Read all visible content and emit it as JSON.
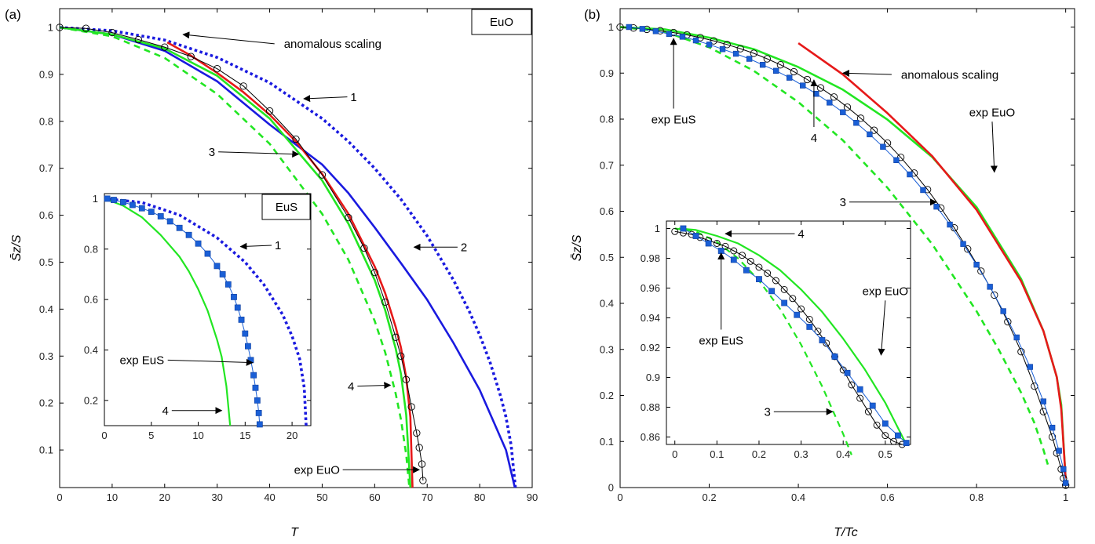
{
  "chart_data": [
    {
      "panel_label": "(a)",
      "type": "line",
      "xlabel": "T",
      "ylabel": "S̄z/S",
      "xlim": [
        0,
        90
      ],
      "ylim": [
        0.02,
        1.04
      ],
      "xticks": [
        "0",
        "10",
        "20",
        "30",
        "40",
        "50",
        "60",
        "70",
        "80",
        "90"
      ],
      "yticks": [
        "0.1",
        "0.2",
        "0.3",
        "0.4",
        "0.5",
        "0.6",
        "0.7",
        "0.8",
        "0.9",
        "1"
      ],
      "box_label": "EuO",
      "series": [
        {
          "id": "a-curve-1",
          "color": "#1a1adf",
          "style": "dotted",
          "x": [
            0,
            10,
            20,
            30,
            40,
            50,
            55,
            60,
            65,
            70,
            75,
            78,
            80,
            82,
            84,
            85,
            86,
            86.8
          ],
          "y": [
            1,
            0.993,
            0.973,
            0.936,
            0.882,
            0.806,
            0.757,
            0.7,
            0.634,
            0.556,
            0.462,
            0.396,
            0.345,
            0.286,
            0.214,
            0.17,
            0.11,
            0.02
          ]
        },
        {
          "id": "a-curve-2",
          "color": "#1a1adf",
          "style": "solid",
          "x": [
            0,
            10,
            20,
            30,
            40,
            50,
            55,
            60,
            65,
            70,
            75,
            80,
            85,
            86.7
          ],
          "y": [
            1,
            0.985,
            0.95,
            0.885,
            0.793,
            0.708,
            0.647,
            0.574,
            0.498,
            0.42,
            0.328,
            0.228,
            0.1,
            0.02
          ]
        },
        {
          "id": "a-curve-3",
          "color": "#22e622",
          "style": "dashed",
          "x": [
            0,
            10,
            20,
            30,
            40,
            50,
            55,
            60,
            62,
            64,
            65,
            66,
            66.6
          ],
          "y": [
            1,
            0.981,
            0.935,
            0.858,
            0.752,
            0.603,
            0.505,
            0.375,
            0.308,
            0.22,
            0.165,
            0.09,
            0.02
          ]
        },
        {
          "id": "a-curve-4",
          "color": "#22e622",
          "style": "solid",
          "x": [
            0,
            10,
            20,
            30,
            40,
            50,
            55,
            60,
            62,
            64,
            65,
            66,
            66.8
          ],
          "y": [
            1,
            0.985,
            0.955,
            0.897,
            0.806,
            0.674,
            0.582,
            0.462,
            0.398,
            0.316,
            0.262,
            0.175,
            0.02
          ]
        },
        {
          "id": "a-anomalous",
          "color": "#e61919",
          "style": "solid",
          "x": [
            20.5,
            25,
            30,
            35,
            40,
            45,
            50,
            55,
            60,
            62,
            64,
            65,
            66,
            66.8,
            67.2
          ],
          "y": [
            0.968,
            0.94,
            0.903,
            0.862,
            0.814,
            0.757,
            0.688,
            0.603,
            0.491,
            0.434,
            0.362,
            0.318,
            0.254,
            0.17,
            0.02
          ]
        },
        {
          "id": "a-exp-euo",
          "color": "#000000",
          "style": "markers-open",
          "x": [
            0,
            5,
            10,
            15,
            20,
            25,
            30,
            35,
            40,
            45,
            50,
            55,
            58,
            60,
            62,
            64,
            65,
            66,
            67,
            68,
            68.5,
            69,
            69.2
          ],
          "y": [
            1,
            0.998,
            0.989,
            0.974,
            0.958,
            0.938,
            0.912,
            0.875,
            0.822,
            0.762,
            0.686,
            0.595,
            0.53,
            0.478,
            0.415,
            0.34,
            0.3,
            0.25,
            0.192,
            0.136,
            0.105,
            0.07,
            0.035
          ]
        }
      ],
      "annotations": [
        {
          "text": "anomalous scaling",
          "x": 52,
          "y": 0.965,
          "tx": 23.5,
          "ty": 0.985
        },
        {
          "text": "1",
          "x": 56,
          "y": 0.852,
          "tx": 46.5,
          "ty": 0.848
        },
        {
          "text": "2",
          "x": 77,
          "y": 0.532,
          "tx": 67.5,
          "ty": 0.532
        },
        {
          "text": "3",
          "x": 29,
          "y": 0.735,
          "tx": 45.5,
          "ty": 0.73
        },
        {
          "text": "4",
          "x": 55.5,
          "y": 0.236,
          "tx": 63,
          "ty": 0.238
        },
        {
          "text": "exp EuO",
          "x": 49,
          "y": 0.058,
          "tx": 68.5,
          "ty": 0.058
        }
      ],
      "inset": {
        "type": "line",
        "xlim": [
          0,
          22
        ],
        "ylim": [
          0.1,
          1.02
        ],
        "xticks": [
          "0",
          "5",
          "10",
          "15",
          "20"
        ],
        "yticks": [
          "0.2",
          "0.4",
          "0.6",
          "0.8",
          "1"
        ],
        "box_label": "EuS",
        "series": [
          {
            "id": "i1-curve-1",
            "color": "#1a1adf",
            "style": "dotted",
            "x": [
              0,
              4,
              8,
              12,
              15,
              17,
              19,
              20,
              20.8,
              21.3,
              21.5
            ],
            "y": [
              1,
              0.985,
              0.935,
              0.845,
              0.748,
              0.659,
              0.54,
              0.455,
              0.365,
              0.25,
              0.1
            ]
          },
          {
            "id": "i1-curve-4",
            "color": "#22e622",
            "style": "solid",
            "x": [
              0,
              2,
              4,
              6,
              8,
              9,
              10,
              11,
              12,
              12.5,
              13,
              13.4
            ],
            "y": [
              1,
              0.972,
              0.926,
              0.856,
              0.77,
              0.712,
              0.641,
              0.556,
              0.441,
              0.373,
              0.257,
              0.1
            ]
          },
          {
            "id": "i1-exp-eus",
            "color": "#1a5fd6",
            "style": "markers-square",
            "x": [
              0.3,
              1,
              2,
              3,
              4,
              5,
              6,
              7,
              8,
              9,
              10,
              11,
              12,
              12.6,
              13.2,
              13.8,
              14.2,
              14.6,
              15,
              15.3,
              15.6,
              15.9,
              16.1,
              16.3,
              16.45,
              16.55
            ],
            "y": [
              1,
              0.995,
              0.986,
              0.975,
              0.962,
              0.948,
              0.93,
              0.91,
              0.884,
              0.856,
              0.822,
              0.782,
              0.733,
              0.7,
              0.66,
              0.61,
              0.568,
              0.52,
              0.465,
              0.415,
              0.36,
              0.3,
              0.25,
              0.2,
              0.15,
              0.105
            ]
          }
        ],
        "annotations": [
          {
            "text": "1",
            "x": 18.5,
            "y": 0.815,
            "tx": 14.5,
            "ty": 0.81
          },
          {
            "text": "exp EuS",
            "x": 4,
            "y": 0.36,
            "tx": 15.8,
            "ty": 0.35
          },
          {
            "text": "4",
            "x": 6.5,
            "y": 0.16,
            "tx": 12.5,
            "ty": 0.16
          }
        ]
      }
    },
    {
      "panel_label": "(b)",
      "type": "line",
      "xlabel": "T/Tc",
      "ylabel": "S̄z/S",
      "xlim": [
        0,
        1.02
      ],
      "ylim": [
        0,
        1.04
      ],
      "xticks": [
        "0",
        "0.2",
        "0.4",
        "0.6",
        "0.8",
        "1"
      ],
      "yticks": [
        "0",
        "0.1",
        "0.2",
        "0.3",
        "0.4",
        "0.5",
        "0.6",
        "0.7",
        "0.8",
        "0.9",
        "1"
      ],
      "series": [
        {
          "id": "b-curve-3",
          "color": "#22e622",
          "style": "dashed",
          "x": [
            0,
            0.1,
            0.2,
            0.3,
            0.4,
            0.5,
            0.6,
            0.7,
            0.8,
            0.85,
            0.9,
            0.93,
            0.95,
            0.96
          ],
          "y": [
            1,
            0.99,
            0.956,
            0.905,
            0.837,
            0.754,
            0.651,
            0.529,
            0.383,
            0.299,
            0.206,
            0.14,
            0.082,
            0.05
          ]
        },
        {
          "id": "b-curve-4",
          "color": "#22e622",
          "style": "solid",
          "x": [
            0,
            0.1,
            0.2,
            0.3,
            0.4,
            0.5,
            0.6,
            0.7,
            0.8,
            0.9,
            0.95,
            0.98,
            0.99,
            1
          ],
          "y": [
            1,
            0.995,
            0.977,
            0.952,
            0.913,
            0.864,
            0.799,
            0.718,
            0.609,
            0.453,
            0.34,
            0.24,
            0.18,
            0.02
          ]
        },
        {
          "id": "b-anomalous",
          "color": "#e61919",
          "style": "solid",
          "x": [
            0.4,
            0.5,
            0.6,
            0.7,
            0.8,
            0.9,
            0.95,
            0.98,
            0.99,
            1
          ],
          "y": [
            0.965,
            0.897,
            0.813,
            0.72,
            0.603,
            0.448,
            0.34,
            0.24,
            0.17,
            0.02
          ]
        },
        {
          "id": "b-exp-euo",
          "color": "#000000",
          "style": "markers-open",
          "x": [
            0,
            0.03,
            0.06,
            0.09,
            0.12,
            0.15,
            0.18,
            0.21,
            0.24,
            0.27,
            0.3,
            0.33,
            0.36,
            0.39,
            0.42,
            0.45,
            0.48,
            0.51,
            0.54,
            0.57,
            0.6,
            0.63,
            0.66,
            0.69,
            0.72,
            0.75,
            0.78,
            0.81,
            0.84,
            0.87,
            0.9,
            0.93,
            0.95,
            0.97,
            0.98,
            0.99,
            0.995,
            1
          ],
          "y": [
            1,
            0.998,
            0.995,
            0.992,
            0.988,
            0.983,
            0.977,
            0.97,
            0.962,
            0.953,
            0.943,
            0.931,
            0.918,
            0.903,
            0.886,
            0.868,
            0.848,
            0.826,
            0.802,
            0.776,
            0.748,
            0.717,
            0.683,
            0.647,
            0.607,
            0.564,
            0.518,
            0.47,
            0.418,
            0.36,
            0.295,
            0.22,
            0.165,
            0.11,
            0.075,
            0.04,
            0.02,
            0.005
          ]
        },
        {
          "id": "b-exp-eus",
          "color": "#1a5fd6",
          "style": "markers-square",
          "x": [
            0.02,
            0.05,
            0.08,
            0.11,
            0.14,
            0.17,
            0.2,
            0.23,
            0.26,
            0.29,
            0.32,
            0.35,
            0.38,
            0.41,
            0.44,
            0.47,
            0.5,
            0.53,
            0.56,
            0.59,
            0.62,
            0.65,
            0.68,
            0.71,
            0.74,
            0.77,
            0.8,
            0.83,
            0.86,
            0.89,
            0.92,
            0.95,
            0.97,
            0.985,
            0.995,
            1
          ],
          "y": [
            1,
            0.996,
            0.991,
            0.985,
            0.979,
            0.971,
            0.962,
            0.952,
            0.942,
            0.931,
            0.918,
            0.905,
            0.89,
            0.873,
            0.855,
            0.836,
            0.815,
            0.792,
            0.767,
            0.74,
            0.711,
            0.68,
            0.646,
            0.61,
            0.571,
            0.529,
            0.484,
            0.436,
            0.383,
            0.326,
            0.262,
            0.187,
            0.13,
            0.08,
            0.04,
            0.01
          ]
        }
      ],
      "annotations": [
        {
          "text": "anomalous scaling",
          "x": 0.74,
          "y": 0.897,
          "tx": 0.5,
          "ty": 0.9
        },
        {
          "text": "exp EuS",
          "x": 0.12,
          "y": 0.8,
          "tx": 0.12,
          "ty": 0.975
        },
        {
          "text": "4",
          "x": 0.435,
          "y": 0.76,
          "tx": 0.435,
          "ty": 0.885
        },
        {
          "text": "exp EuO",
          "x": 0.835,
          "y": 0.815,
          "tx": 0.84,
          "ty": 0.685
        },
        {
          "text": "3",
          "x": 0.5,
          "y": 0.62,
          "tx": 0.71,
          "ty": 0.62
        }
      ],
      "inset": {
        "type": "line",
        "xlim": [
          -0.02,
          0.56
        ],
        "ylim": [
          0.855,
          1.005
        ],
        "xticks": [
          "0",
          "0.1",
          "0.2",
          "0.3",
          "0.4",
          "0.5"
        ],
        "yticks": [
          "0.86",
          "0.88",
          "0.9",
          "0.92",
          "0.94",
          "0.96",
          "0.98",
          "1"
        ],
        "series": [
          {
            "id": "i2-curve-3",
            "color": "#22e622",
            "style": "dashed",
            "x": [
              0,
              0.05,
              0.1,
              0.15,
              0.2,
              0.25,
              0.3,
              0.35,
              0.4,
              0.42
            ],
            "y": [
              1,
              0.998,
              0.991,
              0.98,
              0.965,
              0.946,
              0.922,
              0.894,
              0.862,
              0.848
            ]
          },
          {
            "id": "i2-curve-4",
            "color": "#22e622",
            "style": "solid",
            "x": [
              0.01,
              0.05,
              0.1,
              0.15,
              0.2,
              0.25,
              0.3,
              0.35,
              0.4,
              0.45,
              0.5,
              0.55
            ],
            "y": [
              1,
              0.999,
              0.995,
              0.99,
              0.982,
              0.972,
              0.959,
              0.944,
              0.926,
              0.906,
              0.883,
              0.855
            ]
          },
          {
            "id": "i2-exp-euo",
            "color": "#000000",
            "style": "markers-open",
            "x": [
              0,
              0.02,
              0.04,
              0.06,
              0.08,
              0.1,
              0.12,
              0.14,
              0.16,
              0.18,
              0.2,
              0.22,
              0.24,
              0.26,
              0.28,
              0.3,
              0.32,
              0.34,
              0.36,
              0.38,
              0.4,
              0.42,
              0.44,
              0.46,
              0.48,
              0.5,
              0.52,
              0.54
            ],
            "y": [
              0.998,
              0.997,
              0.996,
              0.994,
              0.992,
              0.99,
              0.988,
              0.985,
              0.982,
              0.978,
              0.974,
              0.97,
              0.965,
              0.959,
              0.953,
              0.946,
              0.939,
              0.931,
              0.923,
              0.914,
              0.905,
              0.895,
              0.886,
              0.877,
              0.868,
              0.861,
              0.857,
              0.855
            ]
          },
          {
            "id": "i2-exp-eus",
            "color": "#1a5fd6",
            "style": "markers-square",
            "x": [
              0.02,
              0.05,
              0.08,
              0.11,
              0.14,
              0.17,
              0.2,
              0.23,
              0.26,
              0.29,
              0.32,
              0.35,
              0.38,
              0.41,
              0.44,
              0.47,
              0.5,
              0.53,
              0.55
            ],
            "y": [
              1,
              0.995,
              0.99,
              0.985,
              0.979,
              0.972,
              0.966,
              0.958,
              0.95,
              0.942,
              0.934,
              0.925,
              0.914,
              0.903,
              0.892,
              0.881,
              0.869,
              0.861,
              0.856
            ]
          }
        ],
        "annotations": [
          {
            "text": "4",
            "x": 0.3,
            "y": 0.9965,
            "tx": 0.12,
            "ty": 0.9965
          },
          {
            "text": "exp EuO",
            "x": 0.5,
            "y": 0.958,
            "tx": 0.49,
            "ty": 0.915
          },
          {
            "text": "exp EuS",
            "x": 0.11,
            "y": 0.925,
            "tx": 0.11,
            "ty": 0.9835
          },
          {
            "text": "3",
            "x": 0.22,
            "y": 0.877,
            "tx": 0.375,
            "ty": 0.877
          }
        ]
      }
    }
  ]
}
